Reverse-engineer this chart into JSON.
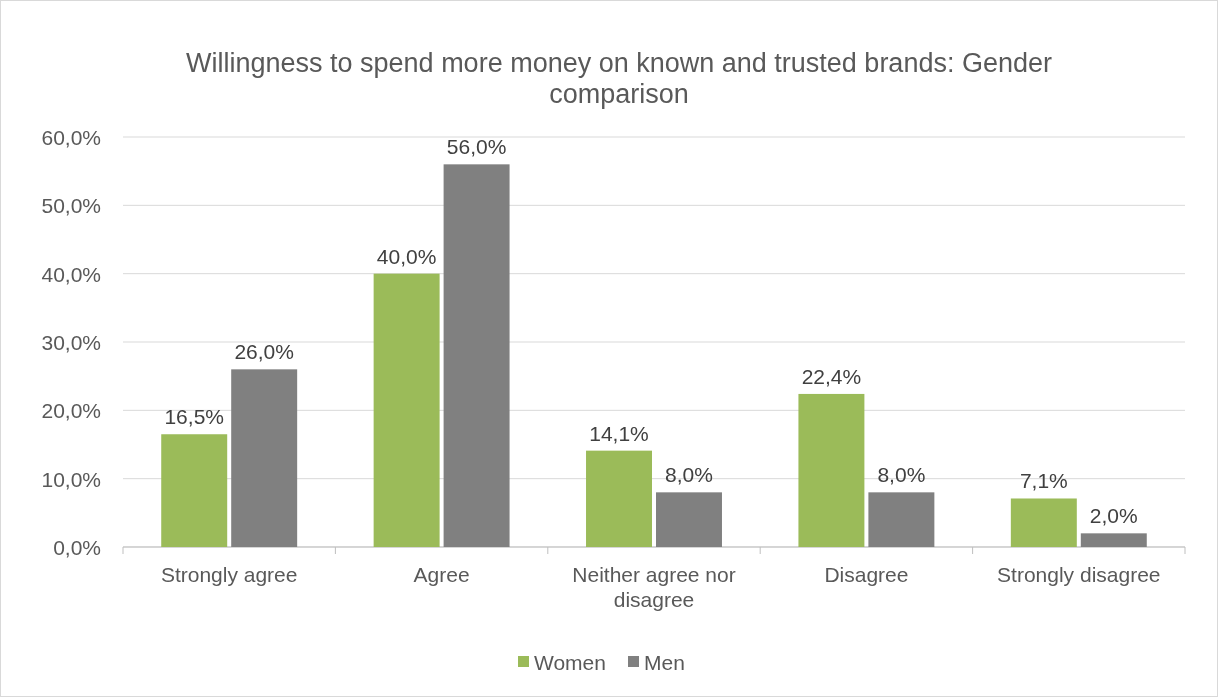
{
  "chart_data": {
    "type": "bar",
    "title": "Willingness to spend more money on known and trusted brands: Gender comparison",
    "categories": [
      "Strongly agree",
      "Agree",
      "Neither agree nor disagree",
      "Disagree",
      "Strongly disagree"
    ],
    "series": [
      {
        "name": "Women",
        "color": "#9bbb59",
        "values": [
          16.5,
          40.0,
          14.1,
          22.4,
          7.1
        ],
        "value_labels": [
          "16,5%",
          "40,0%",
          "14,1%",
          "22,4%",
          "7,1%"
        ]
      },
      {
        "name": "Men",
        "color": "#808080",
        "values": [
          26.0,
          56.0,
          8.0,
          8.0,
          2.0
        ],
        "value_labels": [
          "26,0%",
          "56,0%",
          "8,0%",
          "8,0%",
          "2,0%"
        ]
      }
    ],
    "ylim": [
      0,
      60
    ],
    "yticks": [
      {
        "value": 0,
        "label": "0,0%"
      },
      {
        "value": 10,
        "label": "10,0%"
      },
      {
        "value": 20,
        "label": "20,0%"
      },
      {
        "value": 30,
        "label": "30,0%"
      },
      {
        "value": 40,
        "label": "40,0%"
      },
      {
        "value": 50,
        "label": "50,0%"
      },
      {
        "value": 60,
        "label": "60,0%"
      }
    ],
    "grid": "y",
    "legend": "bottom"
  }
}
